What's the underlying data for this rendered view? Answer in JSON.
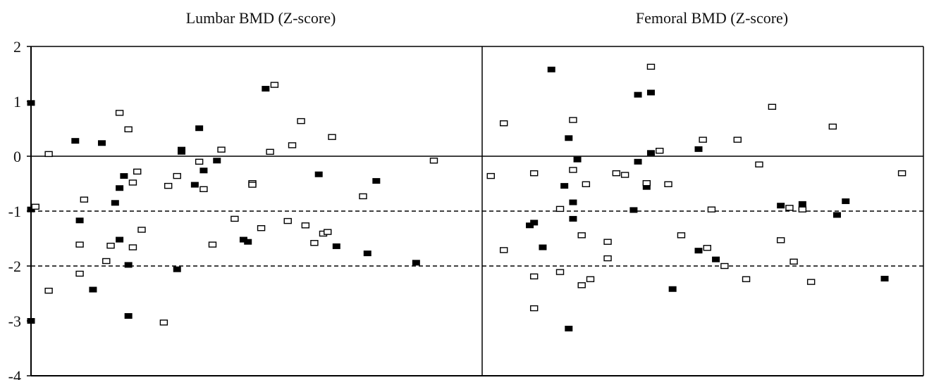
{
  "chart_data": [
    {
      "type": "scatter",
      "title": "Lumbar BMD (Z-score)",
      "xlabel": "",
      "ylabel": "",
      "ylim": [
        -4,
        2
      ],
      "yticks": [
        2,
        1,
        0,
        -1,
        -2,
        -3,
        -4
      ],
      "grid": false,
      "reference_lines": [
        {
          "y": 0,
          "style": "solid"
        },
        {
          "y": -1,
          "style": "dashed"
        },
        {
          "y": -2,
          "style": "dashed"
        }
      ],
      "series": [
        {
          "marker": "filled-square",
          "color": "#000000",
          "points": [
            {
              "x": 0.0,
              "y": 0.97
            },
            {
              "x": 0.0,
              "y": -0.97
            },
            {
              "x": 0.0,
              "y": -3.0
            },
            {
              "x": 0.1,
              "y": 0.28
            },
            {
              "x": 0.16,
              "y": 0.24
            },
            {
              "x": 0.11,
              "y": -1.17
            },
            {
              "x": 0.14,
              "y": -2.43
            },
            {
              "x": 0.19,
              "y": -0.85
            },
            {
              "x": 0.2,
              "y": -0.58
            },
            {
              "x": 0.2,
              "y": -1.52
            },
            {
              "x": 0.21,
              "y": -0.36
            },
            {
              "x": 0.22,
              "y": -1.98
            },
            {
              "x": 0.22,
              "y": -2.91
            },
            {
              "x": 0.34,
              "y": 0.08
            },
            {
              "x": 0.34,
              "y": 0.12
            },
            {
              "x": 0.33,
              "y": -2.06
            },
            {
              "x": 0.37,
              "y": -0.52
            },
            {
              "x": 0.39,
              "y": -0.26
            },
            {
              "x": 0.38,
              "y": 0.51
            },
            {
              "x": 0.42,
              "y": -0.08
            },
            {
              "x": 0.48,
              "y": -1.52
            },
            {
              "x": 0.49,
              "y": -1.56
            },
            {
              "x": 0.53,
              "y": 1.23
            },
            {
              "x": 0.65,
              "y": -0.33
            },
            {
              "x": 0.69,
              "y": -1.64
            },
            {
              "x": 0.78,
              "y": -0.45
            },
            {
              "x": 0.76,
              "y": -1.77
            },
            {
              "x": 0.87,
              "y": -1.94
            }
          ]
        },
        {
          "marker": "open-square",
          "color": "#000000",
          "points": [
            {
              "x": 0.01,
              "y": -0.92
            },
            {
              "x": 0.04,
              "y": 0.04
            },
            {
              "x": 0.04,
              "y": -2.45
            },
            {
              "x": 0.12,
              "y": -0.79
            },
            {
              "x": 0.11,
              "y": -1.61
            },
            {
              "x": 0.11,
              "y": -2.14
            },
            {
              "x": 0.17,
              "y": -1.91
            },
            {
              "x": 0.18,
              "y": -1.63
            },
            {
              "x": 0.2,
              "y": 0.79
            },
            {
              "x": 0.22,
              "y": 0.49
            },
            {
              "x": 0.23,
              "y": -0.48
            },
            {
              "x": 0.23,
              "y": -1.66
            },
            {
              "x": 0.24,
              "y": -0.28
            },
            {
              "x": 0.25,
              "y": -1.34
            },
            {
              "x": 0.3,
              "y": -3.03
            },
            {
              "x": 0.31,
              "y": -0.54
            },
            {
              "x": 0.33,
              "y": -0.36
            },
            {
              "x": 0.38,
              "y": -0.1
            },
            {
              "x": 0.39,
              "y": -0.6
            },
            {
              "x": 0.41,
              "y": -1.61
            },
            {
              "x": 0.43,
              "y": 0.12
            },
            {
              "x": 0.46,
              "y": -1.14
            },
            {
              "x": 0.5,
              "y": -0.49
            },
            {
              "x": 0.5,
              "y": -0.52
            },
            {
              "x": 0.52,
              "y": -1.31
            },
            {
              "x": 0.54,
              "y": 0.08
            },
            {
              "x": 0.55,
              "y": 1.3
            },
            {
              "x": 0.58,
              "y": -1.18
            },
            {
              "x": 0.59,
              "y": 0.2
            },
            {
              "x": 0.61,
              "y": 0.64
            },
            {
              "x": 0.62,
              "y": -1.26
            },
            {
              "x": 0.64,
              "y": -1.58
            },
            {
              "x": 0.66,
              "y": -1.41
            },
            {
              "x": 0.67,
              "y": -1.38
            },
            {
              "x": 0.68,
              "y": 0.35
            },
            {
              "x": 0.75,
              "y": -0.73
            },
            {
              "x": 0.91,
              "y": -0.08
            }
          ]
        }
      ]
    },
    {
      "type": "scatter",
      "title": "Femoral BMD (Z-score)",
      "xlabel": "",
      "ylabel": "",
      "ylim": [
        -4,
        2
      ],
      "grid": false,
      "reference_lines": [
        {
          "y": 0,
          "style": "solid"
        },
        {
          "y": -1,
          "style": "dashed"
        },
        {
          "y": -2,
          "style": "dashed"
        }
      ],
      "series": [
        {
          "marker": "filled-square",
          "color": "#000000",
          "points": [
            {
              "x": 0.11,
              "y": -1.26
            },
            {
              "x": 0.12,
              "y": -1.21
            },
            {
              "x": 0.14,
              "y": -1.66
            },
            {
              "x": 0.16,
              "y": 1.58
            },
            {
              "x": 0.19,
              "y": -0.54
            },
            {
              "x": 0.2,
              "y": 0.33
            },
            {
              "x": 0.21,
              "y": -0.84
            },
            {
              "x": 0.21,
              "y": -1.14
            },
            {
              "x": 0.22,
              "y": -0.06
            },
            {
              "x": 0.2,
              "y": -3.14
            },
            {
              "x": 0.35,
              "y": -0.98
            },
            {
              "x": 0.36,
              "y": 1.12
            },
            {
              "x": 0.36,
              "y": -0.1
            },
            {
              "x": 0.38,
              "y": -0.56
            },
            {
              "x": 0.39,
              "y": 1.16
            },
            {
              "x": 0.39,
              "y": 0.06
            },
            {
              "x": 0.44,
              "y": -2.42
            },
            {
              "x": 0.5,
              "y": 0.13
            },
            {
              "x": 0.5,
              "y": -1.72
            },
            {
              "x": 0.54,
              "y": -1.88
            },
            {
              "x": 0.69,
              "y": -0.9
            },
            {
              "x": 0.74,
              "y": -0.87
            },
            {
              "x": 0.82,
              "y": -1.07
            },
            {
              "x": 0.84,
              "y": -0.82
            },
            {
              "x": 0.93,
              "y": -2.23
            }
          ]
        },
        {
          "marker": "open-square",
          "color": "#000000",
          "points": [
            {
              "x": 0.02,
              "y": -0.36
            },
            {
              "x": 0.05,
              "y": 0.6
            },
            {
              "x": 0.05,
              "y": -1.71
            },
            {
              "x": 0.12,
              "y": -0.31
            },
            {
              "x": 0.12,
              "y": -2.19
            },
            {
              "x": 0.12,
              "y": -2.77
            },
            {
              "x": 0.18,
              "y": -2.11
            },
            {
              "x": 0.18,
              "y": -0.96
            },
            {
              "x": 0.21,
              "y": -0.25
            },
            {
              "x": 0.21,
              "y": 0.66
            },
            {
              "x": 0.23,
              "y": -1.44
            },
            {
              "x": 0.23,
              "y": -2.35
            },
            {
              "x": 0.24,
              "y": -0.51
            },
            {
              "x": 0.25,
              "y": -2.24
            },
            {
              "x": 0.29,
              "y": -1.56
            },
            {
              "x": 0.29,
              "y": -1.86
            },
            {
              "x": 0.31,
              "y": -0.31
            },
            {
              "x": 0.33,
              "y": -0.34
            },
            {
              "x": 0.38,
              "y": -0.49
            },
            {
              "x": 0.39,
              "y": 1.63
            },
            {
              "x": 0.41,
              "y": 0.1
            },
            {
              "x": 0.43,
              "y": -0.51
            },
            {
              "x": 0.46,
              "y": -1.44
            },
            {
              "x": 0.51,
              "y": 0.3
            },
            {
              "x": 0.52,
              "y": -1.67
            },
            {
              "x": 0.53,
              "y": -0.97
            },
            {
              "x": 0.56,
              "y": -2.0
            },
            {
              "x": 0.59,
              "y": 0.3
            },
            {
              "x": 0.61,
              "y": -2.24
            },
            {
              "x": 0.64,
              "y": -0.15
            },
            {
              "x": 0.67,
              "y": 0.9
            },
            {
              "x": 0.69,
              "y": -1.53
            },
            {
              "x": 0.71,
              "y": -0.94
            },
            {
              "x": 0.72,
              "y": -1.92
            },
            {
              "x": 0.74,
              "y": -0.97
            },
            {
              "x": 0.76,
              "y": -2.29
            },
            {
              "x": 0.81,
              "y": 0.54
            },
            {
              "x": 0.97,
              "y": -0.31
            }
          ]
        }
      ]
    }
  ]
}
